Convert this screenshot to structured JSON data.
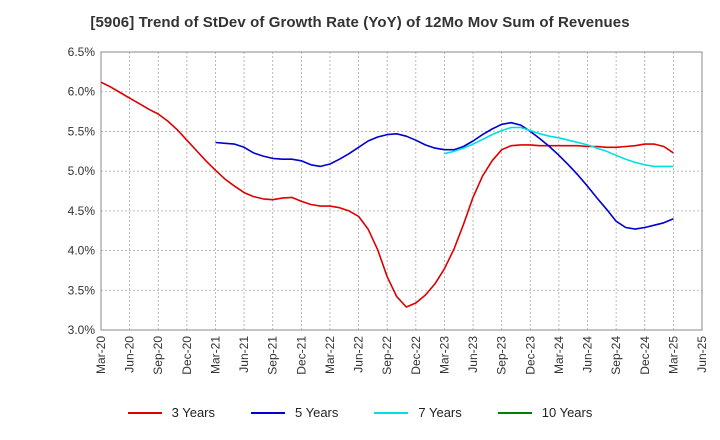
{
  "chart_data": {
    "type": "line",
    "title": "[5906]  Trend of StDev of Growth Rate (YoY) of 12Mo Mov Sum of Revenues",
    "xlabel": "",
    "ylabel": "",
    "ylim": [
      3.0,
      6.5
    ],
    "y_ticks": [
      "3.0%",
      "3.5%",
      "4.0%",
      "4.5%",
      "5.0%",
      "5.5%",
      "6.0%",
      "6.5%"
    ],
    "x_ticks": [
      "Mar-20",
      "Jun-20",
      "Sep-20",
      "Dec-20",
      "Mar-21",
      "Jun-21",
      "Sep-21",
      "Dec-21",
      "Mar-22",
      "Jun-22",
      "Sep-22",
      "Dec-22",
      "Mar-23",
      "Jun-23",
      "Sep-23",
      "Dec-23",
      "Mar-24",
      "Jun-24",
      "Sep-24",
      "Dec-24",
      "Mar-25",
      "Jun-25"
    ],
    "grid": true,
    "legend_position": "bottom",
    "series": [
      {
        "name": "3 Years",
        "color": "#dd0000",
        "start_index": 0,
        "values": [
          6.12,
          6.06,
          5.99,
          5.92,
          5.85,
          5.78,
          5.72,
          5.63,
          5.52,
          5.39,
          5.26,
          5.13,
          5.01,
          4.9,
          4.81,
          4.73,
          4.68,
          4.65,
          4.64,
          4.66,
          4.67,
          4.62,
          4.58,
          4.56,
          4.56,
          4.54,
          4.5,
          4.43,
          4.27,
          4.01,
          3.67,
          3.42,
          3.29,
          3.34,
          3.44,
          3.58,
          3.77,
          4.02,
          4.33,
          4.67,
          4.94,
          5.13,
          5.27,
          5.32,
          5.33,
          5.33,
          5.32,
          5.32,
          5.32,
          5.32,
          5.32,
          5.31,
          5.31,
          5.3,
          5.3,
          5.31,
          5.32,
          5.34,
          5.34,
          5.31,
          5.23
        ]
      },
      {
        "name": "5 Years",
        "color": "#0000cc",
        "start_index": 12,
        "values": [
          5.36,
          5.35,
          5.34,
          5.3,
          5.23,
          5.19,
          5.16,
          5.15,
          5.15,
          5.13,
          5.08,
          5.06,
          5.09,
          5.15,
          5.22,
          5.3,
          5.38,
          5.43,
          5.46,
          5.47,
          5.44,
          5.39,
          5.33,
          5.29,
          5.27,
          5.27,
          5.31,
          5.38,
          5.46,
          5.53,
          5.59,
          5.61,
          5.58,
          5.5,
          5.41,
          5.31,
          5.2,
          5.08,
          4.95,
          4.81,
          4.66,
          4.52,
          4.37,
          4.29,
          4.27,
          4.29,
          4.32,
          4.35,
          4.4
        ]
      },
      {
        "name": "7 Years",
        "color": "#00e0e0",
        "start_index": 36,
        "values": [
          5.22,
          5.25,
          5.29,
          5.34,
          5.4,
          5.46,
          5.51,
          5.55,
          5.55,
          5.51,
          5.47,
          5.44,
          5.42,
          5.39,
          5.36,
          5.33,
          5.29,
          5.25,
          5.2,
          5.15,
          5.11,
          5.08,
          5.06,
          5.06,
          5.06
        ]
      },
      {
        "name": "10 Years",
        "color": "#008000",
        "start_index": 0,
        "values": []
      }
    ]
  }
}
